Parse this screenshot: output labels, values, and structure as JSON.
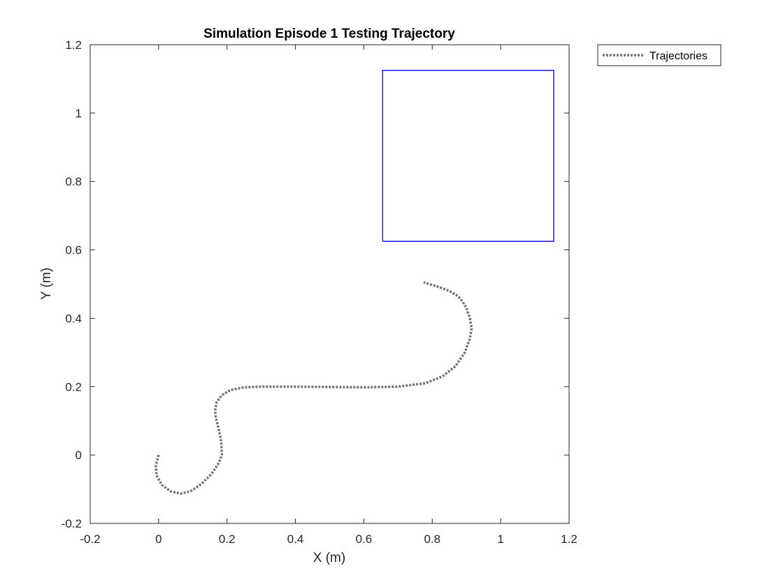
{
  "chart_data": {
    "type": "line",
    "title": "Simulation Episode 1 Testing Trajectory",
    "xlabel": "X (m)",
    "ylabel": "Y (m)",
    "xlim": [
      -0.2,
      1.2
    ],
    "ylim": [
      -0.2,
      1.2
    ],
    "xticks": [
      -0.2,
      0,
      0.2,
      0.4,
      0.6,
      0.8,
      1,
      1.2
    ],
    "yticks": [
      -0.2,
      0,
      0.2,
      0.4,
      0.6,
      0.8,
      1,
      1.2
    ],
    "xtick_labels": [
      "-0.2",
      "0",
      "0.2",
      "0.4",
      "0.6",
      "0.8",
      "1",
      "1.2"
    ],
    "ytick_labels": [
      "-0.2",
      "0",
      "0.2",
      "0.4",
      "0.6",
      "0.8",
      "1",
      "1.2"
    ],
    "grid": false,
    "legend": {
      "placement": "outside-top-right",
      "entries": [
        "Trajectories"
      ]
    },
    "series": [
      {
        "name": "Trajectories",
        "style": "dotted",
        "color": "#737373",
        "x": [
          0.0,
          -0.008,
          -0.006,
          0.01,
          0.035,
          0.065,
          0.095,
          0.125,
          0.155,
          0.175,
          0.185,
          0.183,
          0.175,
          0.167,
          0.165,
          0.17,
          0.185,
          0.21,
          0.25,
          0.3,
          0.4,
          0.5,
          0.6,
          0.7,
          0.78,
          0.83,
          0.868,
          0.895,
          0.91,
          0.915,
          0.91,
          0.9,
          0.888,
          0.875,
          0.85,
          0.815,
          0.775
        ],
        "y": [
          0.0,
          -0.03,
          -0.06,
          -0.088,
          -0.106,
          -0.113,
          -0.105,
          -0.085,
          -0.055,
          -0.025,
          0.0,
          0.04,
          0.08,
          0.11,
          0.13,
          0.155,
          0.175,
          0.19,
          0.198,
          0.2,
          0.2,
          0.199,
          0.198,
          0.2,
          0.21,
          0.23,
          0.26,
          0.3,
          0.34,
          0.37,
          0.4,
          0.43,
          0.45,
          0.465,
          0.48,
          0.493,
          0.505
        ]
      },
      {
        "name": "",
        "type": "rectangle",
        "color": "#0000ff",
        "x": [
          0.655,
          1.155,
          1.155,
          0.655,
          0.655
        ],
        "y": [
          0.625,
          0.625,
          1.125,
          1.125,
          0.625
        ]
      }
    ]
  }
}
